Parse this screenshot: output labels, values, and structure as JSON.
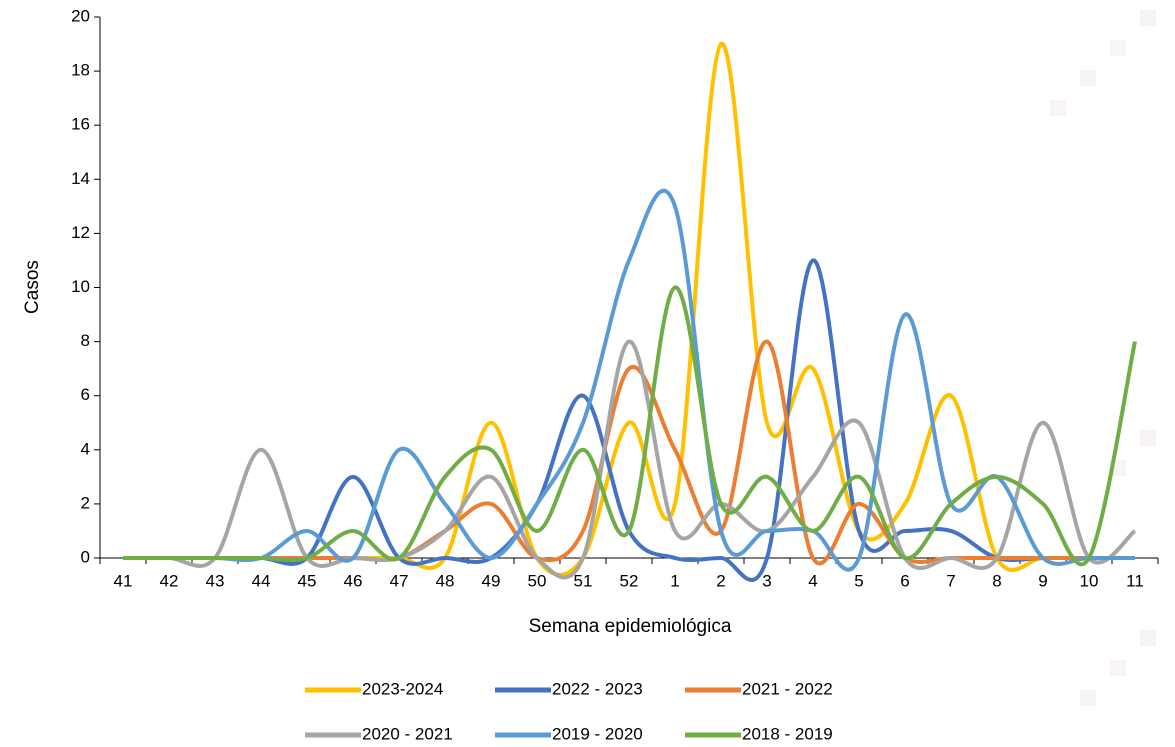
{
  "chart_data": {
    "type": "line",
    "x_label": "Semana epidemiológica",
    "y_label": "Casos",
    "categories": [
      "41",
      "42",
      "43",
      "44",
      "45",
      "46",
      "47",
      "48",
      "49",
      "50",
      "51",
      "52",
      "1",
      "2",
      "3",
      "4",
      "5",
      "6",
      "7",
      "8",
      "9",
      "10",
      "11"
    ],
    "ylim": [
      0,
      20
    ],
    "yticks": [
      0,
      2,
      4,
      6,
      8,
      10,
      12,
      14,
      16,
      18,
      20
    ],
    "grid": false,
    "legend": "bottom",
    "smooth": true,
    "series": [
      {
        "name": "2023-2024",
        "color": "#FFC000",
        "values": [
          0,
          0,
          0,
          0,
          0,
          0,
          0,
          0,
          5,
          0,
          0,
          5,
          2,
          19,
          5,
          7,
          1,
          2,
          6,
          0,
          0,
          0,
          0
        ]
      },
      {
        "name": "2022 - 2023",
        "color": "#4472C4",
        "values": [
          0,
          0,
          0,
          0,
          0,
          3,
          0,
          0,
          0,
          2,
          6,
          1,
          0,
          0,
          0,
          11,
          1,
          1,
          1,
          0,
          0,
          0,
          0
        ]
      },
      {
        "name": "2021 - 2022",
        "color": "#ED7D31",
        "values": [
          0,
          0,
          0,
          0,
          0,
          0,
          0,
          1,
          2,
          0,
          1,
          7,
          4,
          1,
          8,
          0,
          2,
          0,
          0,
          0,
          0,
          0,
          0
        ]
      },
      {
        "name": "2020 - 2021",
        "color": "#A5A5A5",
        "values": [
          0,
          0,
          0,
          4,
          0,
          0,
          0,
          1,
          3,
          0,
          0,
          8,
          1,
          2,
          1,
          3,
          5,
          0,
          0,
          0,
          5,
          0,
          1
        ]
      },
      {
        "name": "2019 - 2020",
        "color": "#5B9BD5",
        "values": [
          0,
          0,
          0,
          0,
          1,
          0,
          4,
          2,
          0,
          2,
          5,
          11,
          13,
          1,
          1,
          1,
          0,
          9,
          2,
          3,
          0,
          0,
          0
        ]
      },
      {
        "name": "2018 - 2019",
        "color": "#70AD47",
        "values": [
          0,
          0,
          0,
          0,
          0,
          1,
          0,
          3,
          4,
          1,
          4,
          1,
          10,
          2,
          3,
          1,
          3,
          0,
          2,
          3,
          2,
          0,
          8
        ]
      }
    ]
  }
}
